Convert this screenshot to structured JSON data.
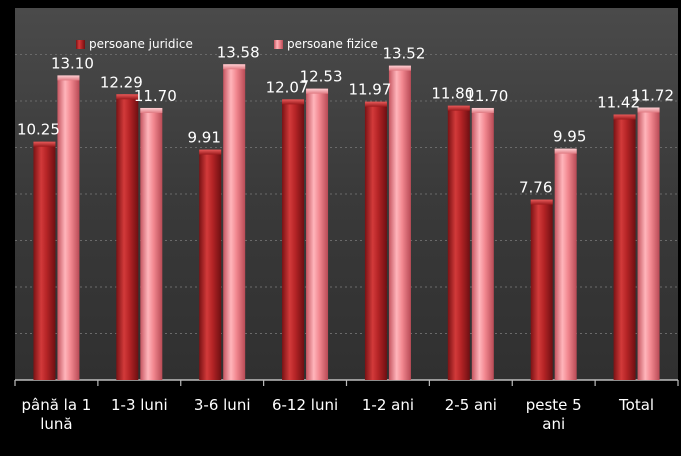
{
  "chart_data": {
    "type": "bar",
    "title": "",
    "xlabel": "",
    "ylabel": "",
    "ylim": [
      0,
      16
    ],
    "grid": true,
    "legend_position": "top-left",
    "categories": [
      [
        "până la 1",
        "lună"
      ],
      [
        "1-3 luni"
      ],
      [
        "3-6 luni"
      ],
      [
        "6-12 luni"
      ],
      [
        "1-2 ani"
      ],
      [
        "2-5 ani"
      ],
      [
        "peste 5",
        "ani"
      ],
      [
        "Total"
      ]
    ],
    "series": [
      {
        "name": "persoane juridice",
        "color": "#c0282a",
        "values": [
          10.25,
          12.29,
          9.91,
          12.07,
          11.97,
          11.8,
          7.76,
          11.42
        ],
        "labels": [
          "10.25",
          "12.29",
          "9.91",
          "12.07",
          "11.97",
          "11.80",
          "7.76",
          "11.42"
        ]
      },
      {
        "name": "persoane fizice",
        "color": "#f07f87",
        "values": [
          13.1,
          11.7,
          13.58,
          12.53,
          13.52,
          11.7,
          9.95,
          11.72
        ],
        "labels": [
          "13.10",
          "11.70",
          "13.58",
          "12.53",
          "13.52",
          "11.70",
          "9.95",
          "11.72"
        ]
      }
    ]
  }
}
